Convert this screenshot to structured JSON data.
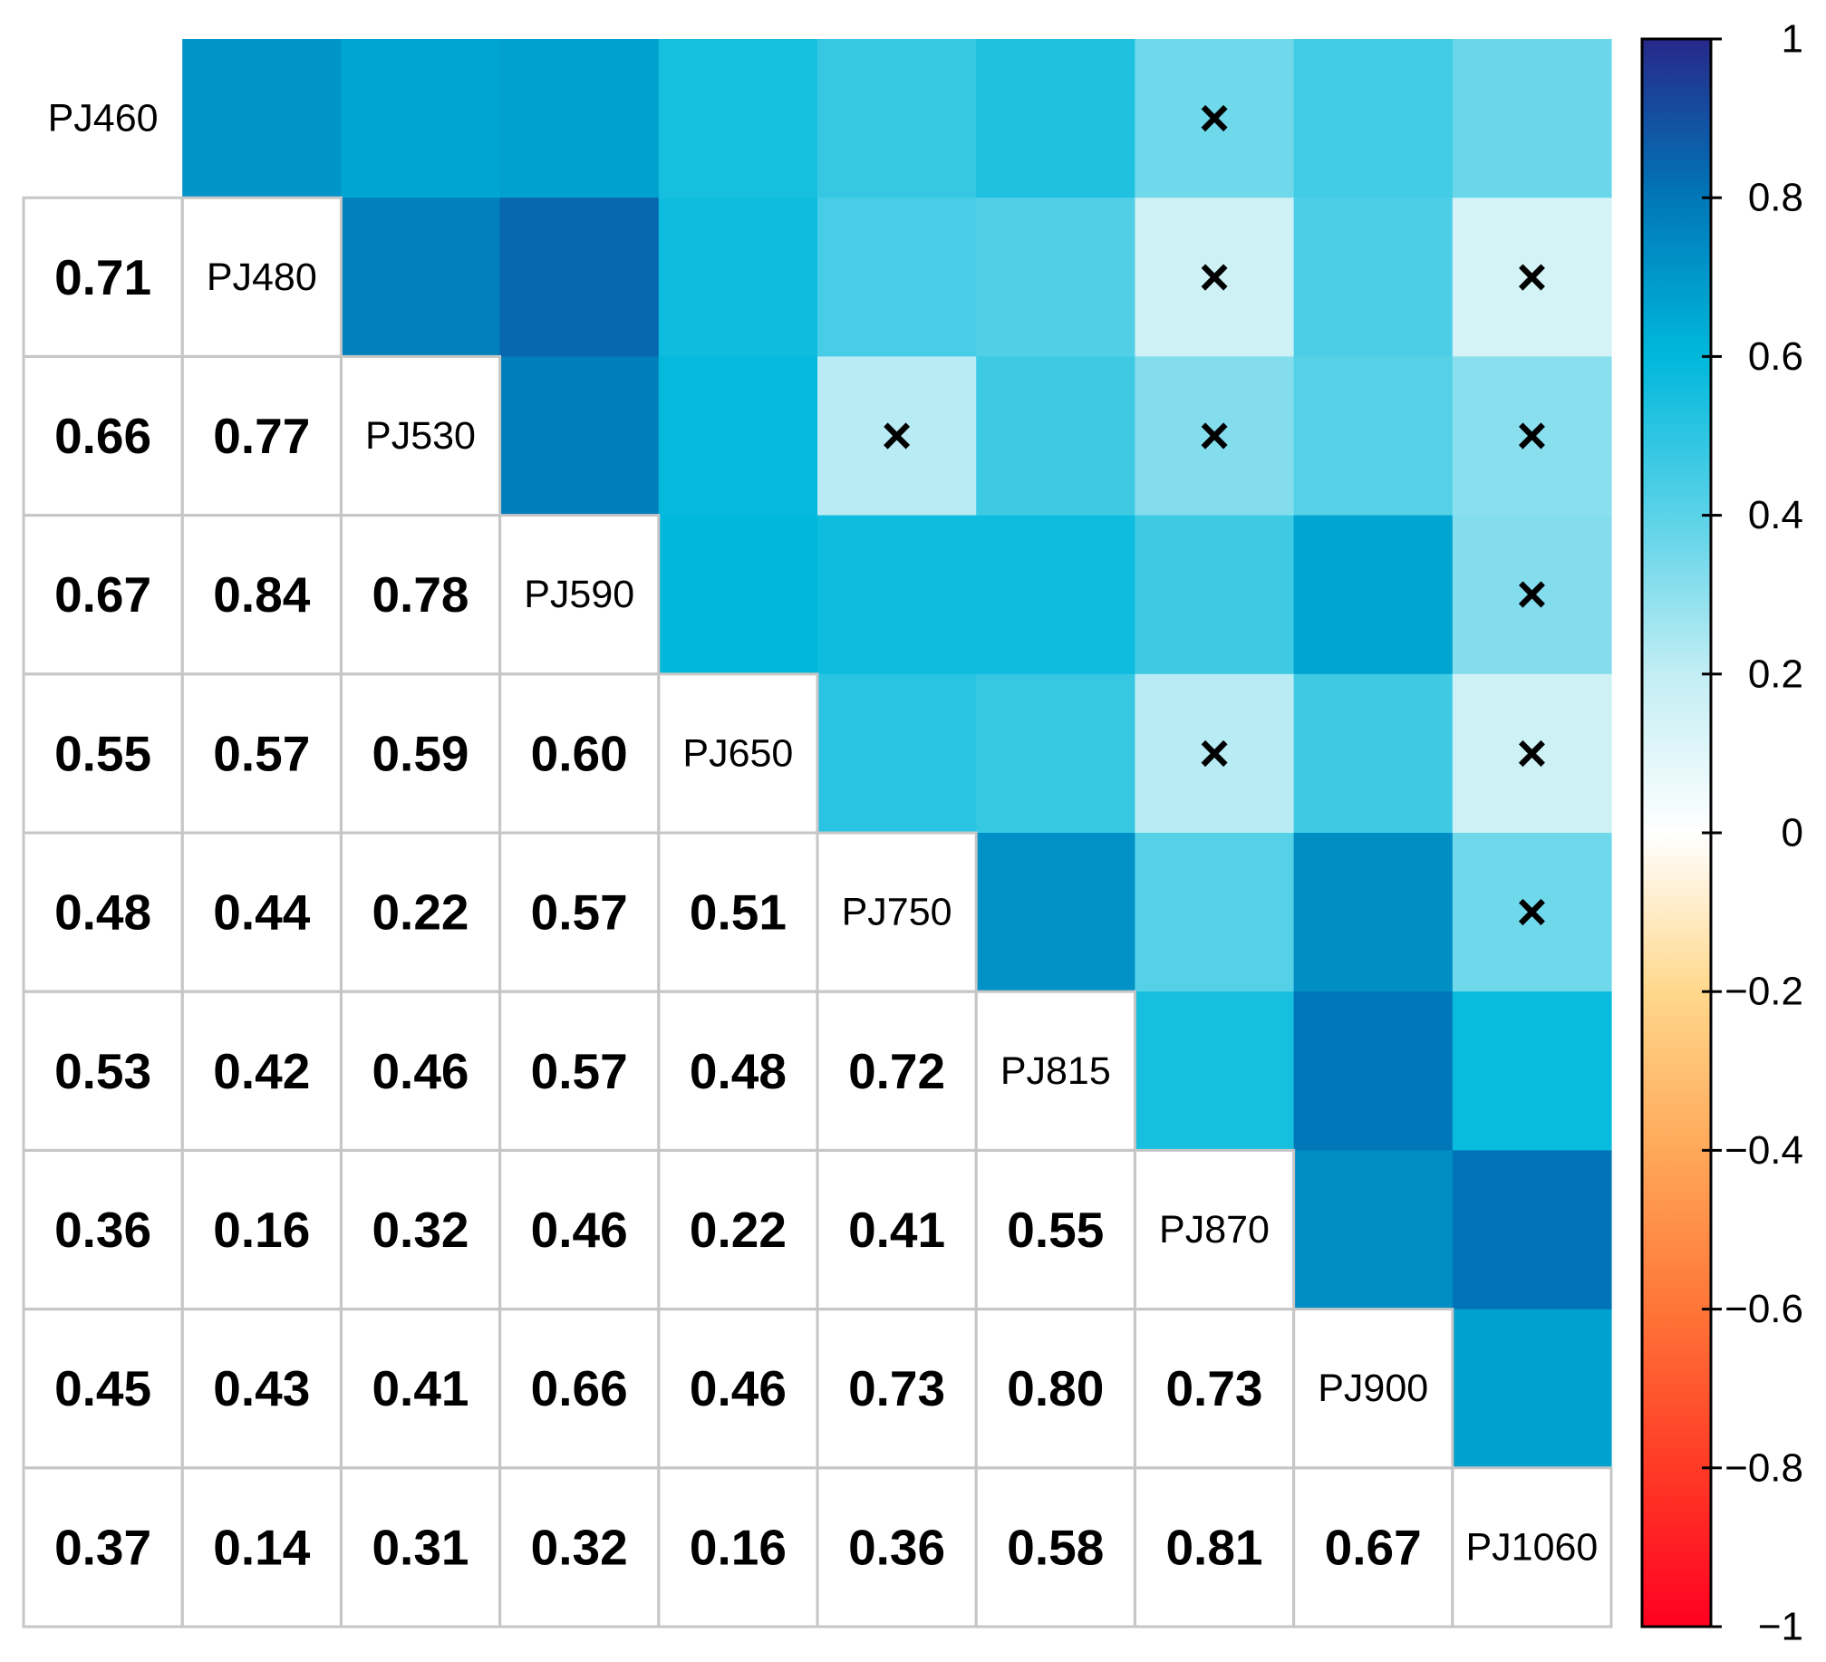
{
  "chart_data": {
    "type": "heatmap",
    "title": "",
    "variables": [
      "PJ460",
      "PJ480",
      "PJ530",
      "PJ590",
      "PJ650",
      "PJ750",
      "PJ815",
      "PJ870",
      "PJ900",
      "PJ1060"
    ],
    "lower_values": [
      [],
      [
        0.71
      ],
      [
        0.66,
        0.77
      ],
      [
        0.67,
        0.84,
        0.78
      ],
      [
        0.55,
        0.57,
        0.59,
        0.6
      ],
      [
        0.48,
        0.44,
        0.22,
        0.57,
        0.51
      ],
      [
        0.53,
        0.42,
        0.46,
        0.57,
        0.48,
        0.72
      ],
      [
        0.36,
        0.16,
        0.32,
        0.46,
        0.22,
        0.41,
        0.55
      ],
      [
        0.45,
        0.43,
        0.41,
        0.66,
        0.46,
        0.73,
        0.8,
        0.73
      ],
      [
        0.37,
        0.14,
        0.31,
        0.32,
        0.16,
        0.36,
        0.58,
        0.81,
        0.67
      ]
    ],
    "lower_labels": [
      [],
      [
        "0.71"
      ],
      [
        "0.66",
        "0.77"
      ],
      [
        "0.67",
        "0.84",
        "0.78"
      ],
      [
        "0.55",
        "0.57",
        "0.59",
        "0.60"
      ],
      [
        "0.48",
        "0.44",
        "0.22",
        "0.57",
        "0.51"
      ],
      [
        "0.53",
        "0.42",
        "0.46",
        "0.57",
        "0.48",
        "0.72"
      ],
      [
        "0.36",
        "0.16",
        "0.32",
        "0.46",
        "0.22",
        "0.41",
        "0.55"
      ],
      [
        "0.45",
        "0.43",
        "0.41",
        "0.66",
        "0.46",
        "0.73",
        "0.80",
        "0.73"
      ],
      [
        "0.37",
        "0.14",
        "0.31",
        "0.32",
        "0.16",
        "0.36",
        "0.58",
        "0.81",
        "0.67"
      ]
    ],
    "insignificant_mark": "×",
    "insignificant_cells": [
      [
        0,
        7
      ],
      [
        1,
        7
      ],
      [
        1,
        9
      ],
      [
        2,
        5
      ],
      [
        2,
        7
      ],
      [
        2,
        9
      ],
      [
        3,
        9
      ],
      [
        4,
        7
      ],
      [
        4,
        9
      ],
      [
        5,
        9
      ]
    ],
    "colorbar": {
      "range": [
        -1,
        1
      ],
      "ticks": [
        1,
        0.8,
        0.6,
        0.4,
        0.2,
        0,
        -0.2,
        -0.4,
        -0.6,
        -0.8,
        -1
      ],
      "tick_labels": [
        "1",
        "0.8",
        "0.6",
        "0.4",
        "0.2",
        "0",
        "−0.2",
        "−0.4",
        "−0.6",
        "−0.8",
        "−1"
      ],
      "colors": [
        "#ff0021",
        "#ff3a26",
        "#ff7538",
        "#ffa85a",
        "#ffd88c",
        "#ffffff",
        "#c2eef4",
        "#5ad2e8",
        "#00b8dc",
        "#0077b8",
        "#27288a"
      ]
    }
  }
}
